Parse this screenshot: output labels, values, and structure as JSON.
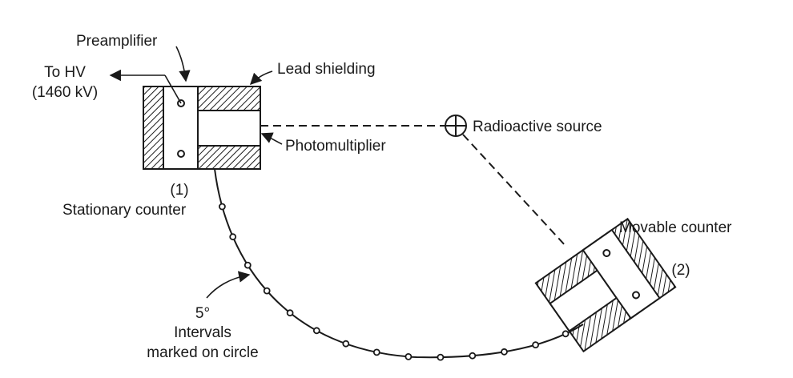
{
  "labels": {
    "preamplifier": "Preamplifier",
    "to_hv_line1": "To HV",
    "to_hv_line2": "(1460 kV)",
    "lead_shielding": "Lead shielding",
    "radioactive_source": "Radioactive source",
    "photomultiplier": "Photomultiplier",
    "counter1_number": "(1)",
    "stationary_counter": "Stationary counter",
    "movable_counter": "Movable counter",
    "counter2_number": "(2)",
    "interval_degree": "5°",
    "interval_line1": "Intervals",
    "interval_line2": "marked on circle"
  },
  "colors": {
    "ink": "#1a1a1a",
    "background": "#ffffff"
  }
}
